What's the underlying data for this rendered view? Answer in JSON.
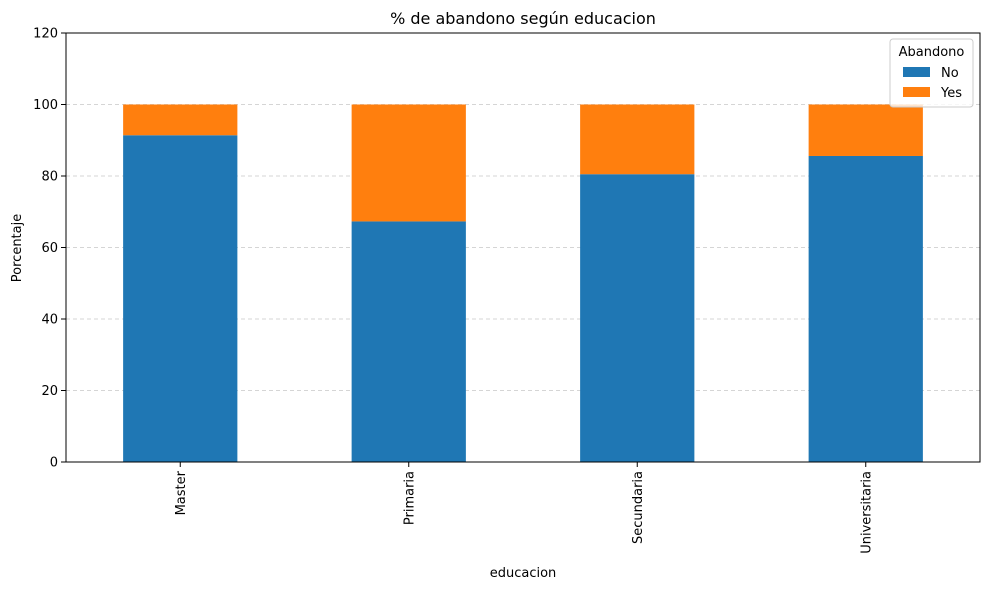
{
  "chart_data": {
    "type": "bar",
    "stacked": true,
    "title": "% de abandono según educacion",
    "xlabel": "educacion",
    "ylabel": "Porcentaje",
    "categories": [
      "Master",
      "Primaria",
      "Secundaria",
      "Universitaria"
    ],
    "series": [
      {
        "name": "No",
        "color": "#1f77b4",
        "values": [
          91.4,
          67.3,
          80.5,
          85.6
        ]
      },
      {
        "name": "Yes",
        "color": "#ff7f0e",
        "values": [
          8.6,
          32.7,
          19.5,
          14.4
        ]
      }
    ],
    "ylim": [
      0,
      120
    ],
    "yticks": [
      0,
      20,
      40,
      60,
      80,
      100,
      120
    ],
    "grid": "y-dashed",
    "legend": {
      "title": "Abandono",
      "placement": "top-right"
    }
  }
}
